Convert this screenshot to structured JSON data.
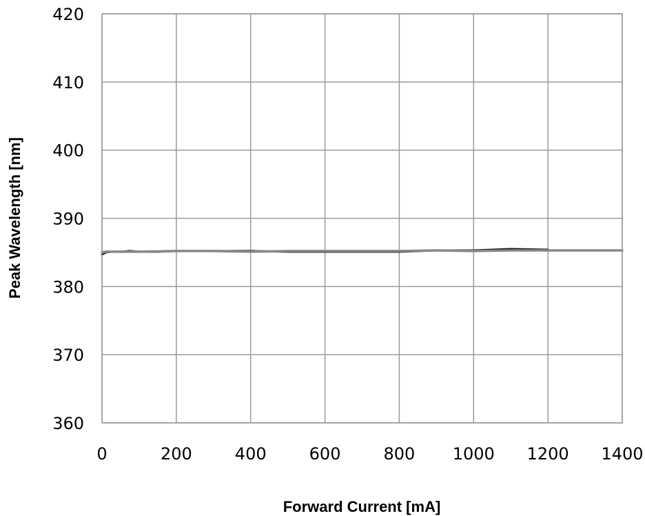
{
  "chart_data": {
    "type": "line",
    "title": "",
    "xlabel": "Forward Current [mA]",
    "ylabel": "Peak Wavelength [nm]",
    "xlim": [
      0,
      1400
    ],
    "ylim": [
      360,
      420
    ],
    "x_ticks": [
      "0",
      "200",
      "400",
      "600",
      "800",
      "1000",
      "1200",
      "1400"
    ],
    "y_ticks": [
      "360",
      "370",
      "380",
      "390",
      "400",
      "410",
      "420"
    ],
    "grid": true,
    "legend": "none",
    "series": [
      {
        "color": "#111111",
        "x": [
          0,
          10,
          25,
          50,
          75,
          100,
          150,
          200,
          300,
          400,
          500,
          600,
          700,
          800,
          900,
          1000,
          1100,
          1200
        ],
        "y": [
          384.7,
          385.0,
          385.1,
          385.1,
          385.2,
          385.1,
          385.1,
          385.2,
          385.2,
          385.2,
          385.1,
          385.1,
          385.1,
          385.1,
          385.3,
          385.3,
          385.5,
          385.4
        ]
      },
      {
        "color": "#888888",
        "x": [
          0,
          10,
          50,
          100,
          200,
          300,
          400,
          500,
          600,
          700,
          800,
          900,
          1000,
          1100,
          1200,
          1300,
          1400
        ],
        "y": [
          385.0,
          385.1,
          385.1,
          385.1,
          385.2,
          385.2,
          385.1,
          385.2,
          385.2,
          385.2,
          385.2,
          385.3,
          385.2,
          385.3,
          385.3,
          385.3,
          385.3
        ]
      }
    ]
  }
}
